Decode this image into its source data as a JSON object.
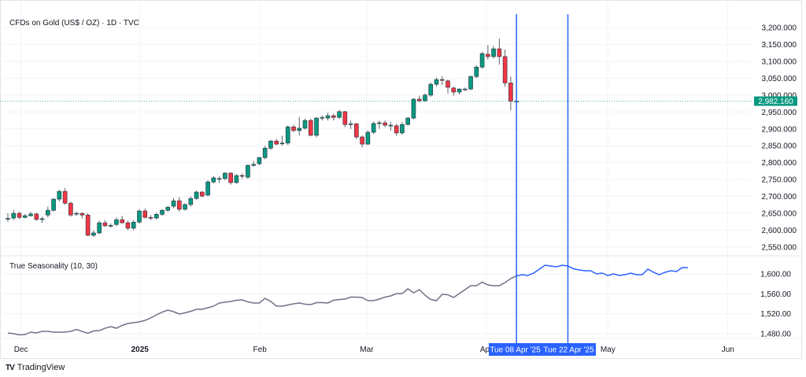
{
  "header": {
    "title": "CFDs on Gold (US$ / OZ) · 1D · TVC"
  },
  "indicator": {
    "title": "True Seasonality (10, 30)"
  },
  "branding": {
    "logo_text": "TradingView"
  },
  "colors": {
    "up": "#089981",
    "down": "#f23645",
    "wick": "#5d606b",
    "season_past": "#6e7386",
    "season_future": "#2962ff",
    "crosshair": "#2962ff",
    "grid": "#f0f3fa"
  },
  "price_scale": {
    "labels": [
      "3,200.000",
      "3,150.000",
      "3,100.000",
      "3,050.000",
      "3,000.000",
      "2,950.000",
      "2,900.000",
      "2,850.000",
      "2,800.000",
      "2,750.000",
      "2,700.000",
      "2,650.000",
      "2,600.000",
      "2,550.000"
    ],
    "values": [
      3200,
      3150,
      3100,
      3050,
      3000,
      2950,
      2900,
      2850,
      2800,
      2750,
      2700,
      2650,
      2600,
      2550
    ],
    "last_price": 2982.16,
    "last_price_label": "2,982.160"
  },
  "indicator_scale": {
    "labels": [
      "1,600.00",
      "1,560.00",
      "1,520.00",
      "1,480.00"
    ],
    "values": [
      1600,
      1560,
      1520,
      1480
    ]
  },
  "time_axis": {
    "labels": [
      {
        "text": "Dec",
        "bold": false
      },
      {
        "text": "2025",
        "bold": true
      },
      {
        "text": "Feb",
        "bold": false
      },
      {
        "text": "Mar",
        "bold": false
      },
      {
        "text": "Apr",
        "bold": false
      },
      {
        "text": "May",
        "bold": false
      },
      {
        "text": "Jun",
        "bold": false
      }
    ],
    "markers": [
      "Tue 08 Apr '25",
      "Tue 22 Apr '25"
    ]
  },
  "chart_data": [
    {
      "type": "candlestick",
      "title": "CFDs on Gold (US$ / OZ) · 1D · TVC",
      "ylim": [
        2530,
        3220
      ],
      "ohlc": [
        [
          2634,
          2650,
          2625,
          2635
        ],
        [
          2636,
          2660,
          2630,
          2650
        ],
        [
          2650,
          2655,
          2633,
          2638
        ],
        [
          2638,
          2648,
          2635,
          2643
        ],
        [
          2643,
          2655,
          2640,
          2648
        ],
        [
          2648,
          2652,
          2628,
          2632
        ],
        [
          2633,
          2640,
          2622,
          2634
        ],
        [
          2645,
          2670,
          2638,
          2659
        ],
        [
          2659,
          2695,
          2655,
          2692
        ],
        [
          2692,
          2720,
          2685,
          2715
        ],
        [
          2715,
          2725,
          2675,
          2680
        ],
        [
          2680,
          2685,
          2640,
          2645
        ],
        [
          2648,
          2655,
          2642,
          2650
        ],
        [
          2650,
          2652,
          2635,
          2645
        ],
        [
          2645,
          2650,
          2582,
          2585
        ],
        [
          2585,
          2600,
          2580,
          2592
        ],
        [
          2592,
          2628,
          2588,
          2622
        ],
        [
          2622,
          2630,
          2610,
          2613
        ],
        [
          2613,
          2620,
          2608,
          2614
        ],
        [
          2617,
          2638,
          2612,
          2631
        ],
        [
          2631,
          2642,
          2620,
          2622
        ],
        [
          2622,
          2628,
          2600,
          2606
        ],
        [
          2606,
          2630,
          2600,
          2624
        ],
        [
          2624,
          2662,
          2620,
          2657
        ],
        [
          2657,
          2664,
          2635,
          2638
        ],
        [
          2638,
          2645,
          2630,
          2636
        ],
        [
          2636,
          2652,
          2632,
          2647
        ],
        [
          2647,
          2662,
          2642,
          2659
        ],
        [
          2659,
          2672,
          2655,
          2668
        ],
        [
          2671,
          2695,
          2665,
          2687
        ],
        [
          2687,
          2698,
          2655,
          2662
        ],
        [
          2662,
          2680,
          2658,
          2676
        ],
        [
          2676,
          2700,
          2670,
          2694
        ],
        [
          2694,
          2718,
          2690,
          2713
        ],
        [
          2713,
          2716,
          2698,
          2701
        ],
        [
          2704,
          2748,
          2700,
          2743
        ],
        [
          2743,
          2760,
          2738,
          2755
        ],
        [
          2752,
          2760,
          2740,
          2753
        ],
        [
          2753,
          2772,
          2748,
          2769
        ],
        [
          2769,
          2772,
          2735,
          2741
        ],
        [
          2741,
          2766,
          2738,
          2762
        ],
        [
          2762,
          2768,
          2752,
          2760
        ],
        [
          2757,
          2795,
          2752,
          2792
        ],
        [
          2792,
          2805,
          2788,
          2795
        ],
        [
          2797,
          2818,
          2792,
          2815
        ],
        [
          2815,
          2850,
          2810,
          2843
        ],
        [
          2843,
          2868,
          2838,
          2864
        ],
        [
          2864,
          2870,
          2852,
          2855
        ],
        [
          2857,
          2880,
          2850,
          2858
        ],
        [
          2858,
          2910,
          2852,
          2906
        ],
        [
          2906,
          2912,
          2890,
          2895
        ],
        [
          2895,
          2935,
          2880,
          2902
        ],
        [
          2902,
          2930,
          2898,
          2925
        ],
        [
          2925,
          2930,
          2878,
          2881
        ],
        [
          2881,
          2935,
          2875,
          2932
        ],
        [
          2932,
          2940,
          2925,
          2934
        ],
        [
          2932,
          2948,
          2925,
          2939
        ],
        [
          2939,
          2945,
          2925,
          2934
        ],
        [
          2934,
          2956,
          2930,
          2951
        ],
        [
          2951,
          2953,
          2905,
          2913
        ],
        [
          2913,
          2925,
          2900,
          2915
        ],
        [
          2915,
          2918,
          2870,
          2876
        ],
        [
          2876,
          2880,
          2845,
          2855
        ],
        [
          2855,
          2895,
          2852,
          2890
        ],
        [
          2890,
          2922,
          2885,
          2916
        ],
        [
          2916,
          2925,
          2900,
          2918
        ],
        [
          2918,
          2925,
          2905,
          2911
        ],
        [
          2911,
          2920,
          2895,
          2911
        ],
        [
          2909,
          2915,
          2880,
          2888
        ],
        [
          2888,
          2920,
          2882,
          2913
        ],
        [
          2913,
          2935,
          2910,
          2932
        ],
        [
          2932,
          2990,
          2928,
          2988
        ],
        [
          2988,
          2998,
          2980,
          2983
        ],
        [
          2983,
          3005,
          2980,
          3000
        ],
        [
          3000,
          3038,
          2995,
          3032
        ],
        [
          3032,
          3052,
          3025,
          3046
        ],
        [
          3046,
          3056,
          3030,
          3044
        ],
        [
          3042,
          3046,
          3005,
          3023
        ],
        [
          3021,
          3025,
          2998,
          3009
        ],
        [
          3009,
          3020,
          3002,
          3018
        ],
        [
          3018,
          3022,
          3012,
          3018
        ],
        [
          3018,
          3058,
          3015,
          3055
        ],
        [
          3055,
          3088,
          3050,
          3083
        ],
        [
          3083,
          3128,
          3078,
          3123
        ],
        [
          3121,
          3148,
          3105,
          3114
        ],
        [
          3114,
          3145,
          3108,
          3137
        ],
        [
          3137,
          3167,
          3090,
          3114
        ],
        [
          3114,
          3135,
          3025,
          3036
        ],
        [
          3036,
          3055,
          2955,
          2982
        ],
        [
          2982,
          3020,
          2978,
          2982.16
        ]
      ]
    },
    {
      "type": "line",
      "title": "True Seasonality (10, 30)",
      "ylim": [
        1470,
        1630
      ],
      "projection_starts_at": "Tue 08 Apr '25",
      "values": [
        1481.6,
        1480.0,
        1477.6,
        1478.4,
        1483.2,
        1481.6,
        1484.7,
        1484.7,
        1483.2,
        1483.2,
        1483.2,
        1484.7,
        1488.7,
        1484.7,
        1480.8,
        1485.5,
        1486.3,
        1491.0,
        1494.2,
        1491.0,
        1496.6,
        1500.5,
        1502.1,
        1503.7,
        1506.8,
        1511.6,
        1517.9,
        1523.4,
        1527.4,
        1524.2,
        1519.5,
        1521.8,
        1525.0,
        1528.9,
        1528.9,
        1532.1,
        1535.3,
        1541.6,
        1543.2,
        1544.7,
        1547.1,
        1547.9,
        1543.9,
        1541.6,
        1541.6,
        1551.1,
        1544.7,
        1535.3,
        1535.3,
        1537.6,
        1540.0,
        1541.6,
        1539.2,
        1538.4,
        1542.4,
        1542.4,
        1541.6,
        1547.1,
        1548.7,
        1549.5,
        1553.4,
        1553.4,
        1552.6,
        1546.3,
        1546.3,
        1549.5,
        1553.4,
        1555.8,
        1560.5,
        1560.5,
        1570.0,
        1562.1,
        1568.4,
        1557.4,
        1548.7,
        1546.3,
        1558.9,
        1558.2,
        1552.6,
        1560.5,
        1568.4,
        1576.3,
        1576.3,
        1583.4,
        1577.9,
        1576.3,
        1576.3,
        1582.6,
        1590.5,
        1596.1,
        1598.4,
        1596.8,
        1601.6,
        1609.5,
        1617.4,
        1615.8,
        1614.2,
        1617.4,
        1615.8,
        1610.3,
        1607.9,
        1606.3,
        1606.3,
        1600.0,
        1601.6,
        1596.8,
        1600.0,
        1596.8,
        1598.4,
        1601.6,
        1598.4,
        1598.4,
        1609.5,
        1603.2,
        1598.4,
        1603.2,
        1606.3,
        1604.7,
        1612.6,
        1612.6
      ]
    }
  ]
}
